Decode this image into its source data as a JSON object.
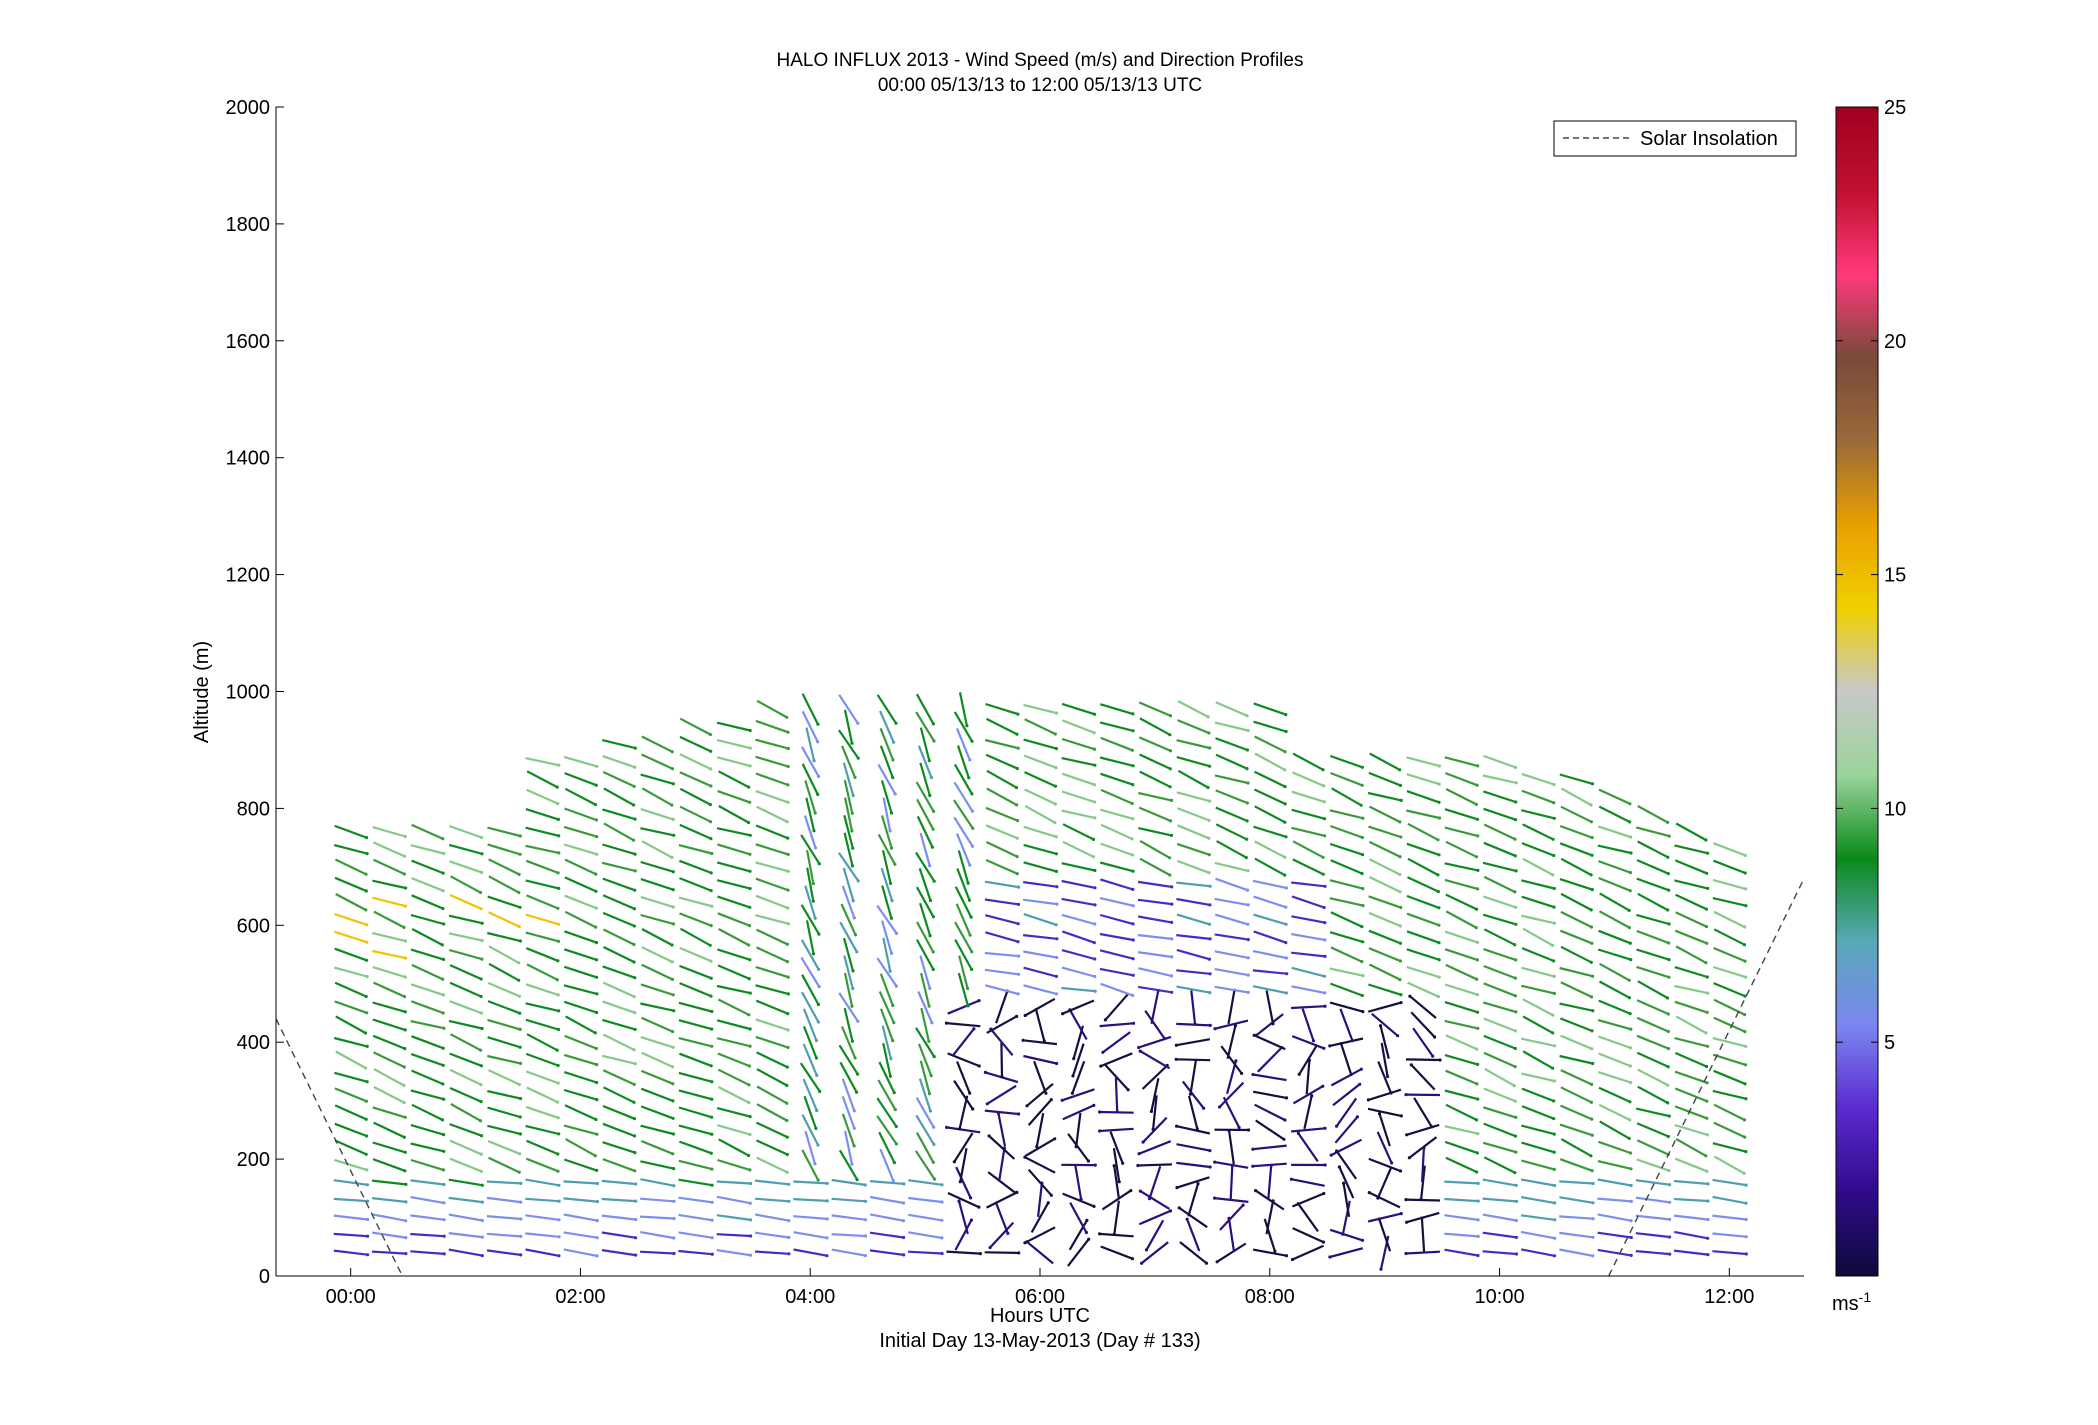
{
  "chart_data": {
    "type": "barb",
    "title": [
      "HALO INFLUX 2013 - Wind Speed (m/s) and Direction Profiles",
      "00:00 05/13/13 to 12:00 05/13/13  UTC"
    ],
    "xlabel": "Hours UTC",
    "subxlabel": "Initial Day 13-May-2013 (Day # 133)",
    "ylabel": "Altitude (m)",
    "xlim": [
      -0.65,
      12.65
    ],
    "ylim": [
      0,
      2000
    ],
    "xticks": [
      0,
      2,
      4,
      6,
      8,
      10,
      12
    ],
    "xtick_labels": [
      "00:00",
      "02:00",
      "04:00",
      "06:00",
      "08:00",
      "10:00",
      "12:00"
    ],
    "yticks": [
      0,
      200,
      400,
      600,
      800,
      1000,
      1200,
      1400,
      1600,
      1800,
      2000
    ],
    "ytick_labels": [
      "0",
      "200",
      "400",
      "600",
      "800",
      "1000",
      "1200",
      "1400",
      "1600",
      "1800",
      "2000"
    ],
    "legend": {
      "entries": [
        "Solar Insolation"
      ],
      "placement": "top-right",
      "style": "dashed"
    },
    "colorbar": {
      "range": [
        0,
        25
      ],
      "ticks": [
        5,
        10,
        15,
        20,
        25
      ],
      "tick_labels": [
        "5",
        "10",
        "15",
        "20",
        "25"
      ],
      "unit": "ms",
      "unit_exp": "-1",
      "colors": [
        "#0f0a3a",
        "#2f0a8a",
        "#5a2ad0",
        "#7a86f0",
        "#5aa8b8",
        "#0a8a1a",
        "#9ad49a",
        "#c8c8c8",
        "#f0d000",
        "#e8a000",
        "#9a6a3a",
        "#7a4a3a",
        "#ff3a7a",
        "#c01030",
        "#a00020"
      ]
    },
    "solar_insolation": [
      {
        "x": -0.65,
        "y": 440
      },
      {
        "x": 0.45,
        "y": 0
      },
      {
        "x": 10.95,
        "y": 0
      },
      {
        "x": 12.65,
        "y": 680
      }
    ]
  }
}
